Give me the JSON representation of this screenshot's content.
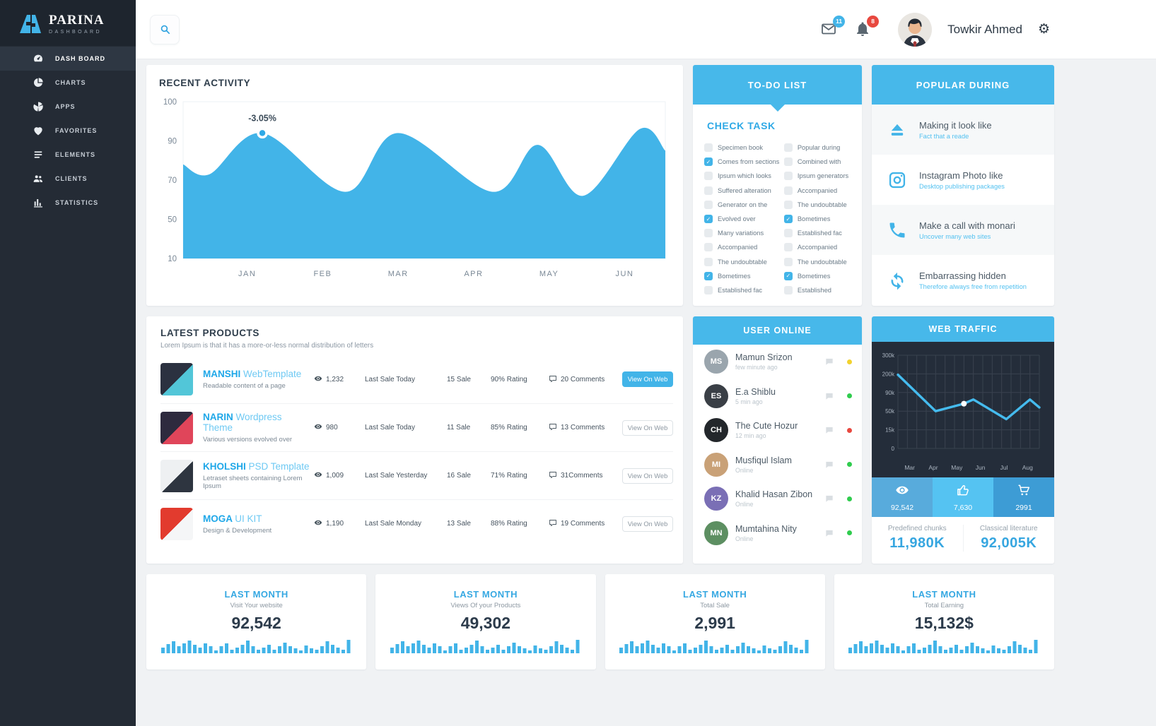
{
  "app": {
    "brand": "PARINA",
    "brand_sub": "DASHBOARD",
    "user_name": "Towkir Ahmed",
    "mail_badge": "11",
    "alert_badge": "8"
  },
  "sidebar": {
    "items": [
      {
        "label": "DASH BOARD",
        "icon": "dashboard-icon",
        "active": true
      },
      {
        "label": "CHARTS",
        "icon": "charts-icon",
        "active": false
      },
      {
        "label": "APPS",
        "icon": "apps-icon",
        "active": false
      },
      {
        "label": "FAVORITES",
        "icon": "favorites-icon",
        "active": false
      },
      {
        "label": "ELEMENTS",
        "icon": "elements-icon",
        "active": false
      },
      {
        "label": "CLIENTS",
        "icon": "clients-icon",
        "active": false
      },
      {
        "label": "STATISTICS",
        "icon": "statistics-icon",
        "active": false
      }
    ]
  },
  "recent_activity": {
    "title": "RECENT ACTIVITY"
  },
  "todo": {
    "header": "TO-DO LIST",
    "subheader": "CHECK TASK",
    "left": [
      {
        "label": "Specimen book",
        "checked": false
      },
      {
        "label": "Comes from sections",
        "checked": true
      },
      {
        "label": "Ipsum which looks",
        "checked": false
      },
      {
        "label": "Suffered alteration",
        "checked": false
      },
      {
        "label": "Generator on the",
        "checked": false
      },
      {
        "label": "Evolved over",
        "checked": true
      },
      {
        "label": "Many variations",
        "checked": false
      },
      {
        "label": "Accompanied",
        "checked": false
      },
      {
        "label": "The undoubtable",
        "checked": false
      },
      {
        "label": "Bometimes",
        "checked": true
      },
      {
        "label": "Established fac",
        "checked": false
      }
    ],
    "right": [
      {
        "label": "Popular during",
        "checked": false
      },
      {
        "label": "Combined with",
        "checked": false
      },
      {
        "label": "Ipsum generators",
        "checked": false
      },
      {
        "label": "Accompanied",
        "checked": false
      },
      {
        "label": "The undoubtable",
        "checked": false
      },
      {
        "label": "Bometimes",
        "checked": true
      },
      {
        "label": "Established fac",
        "checked": false
      },
      {
        "label": "Accompanied",
        "checked": false
      },
      {
        "label": "The undoubtable",
        "checked": false
      },
      {
        "label": "Bometimes",
        "checked": true
      },
      {
        "label": "Established",
        "checked": false
      }
    ]
  },
  "popular": {
    "header": "POPULAR DURING",
    "items": [
      {
        "title": "Making it look like",
        "subtitle": "Fact that a reade",
        "icon": "eject-icon"
      },
      {
        "title": "Instagram Photo like",
        "subtitle": "Desktop publishing packages",
        "icon": "instagram-icon"
      },
      {
        "title": "Make a call with monari",
        "subtitle": "Uncover many web sites",
        "icon": "phone-icon"
      },
      {
        "title": "Embarrassing hidden",
        "subtitle": "Therefore always free from repetition",
        "icon": "sync-icon"
      }
    ]
  },
  "products": {
    "title": "LATEST PRODUCTS",
    "subtitle": "Lorem Ipsum is that it has a more-or-less normal distribution of letters",
    "items": [
      {
        "name": "MANSHI",
        "name_suffix": "WebTemplate",
        "desc": "Readable content of a page",
        "views": "1,232",
        "last_sale": "Last Sale Today",
        "sale": "15 Sale",
        "rating": "90%  Rating",
        "comments": "20 Comments",
        "button": "View On Web",
        "primary_button": true,
        "thumb_colors": [
          "#2b3140",
          "#52c6d8"
        ]
      },
      {
        "name": "NARIN",
        "name_suffix": "Wordpress Theme",
        "desc": "Various versions evolved over",
        "views": "980",
        "last_sale": "Last Sale Today",
        "sale": "11 Sale",
        "rating": "85%  Rating",
        "comments": "13 Comments",
        "button": "View On Web",
        "primary_button": false,
        "thumb_colors": [
          "#2e2a3e",
          "#e0455a"
        ]
      },
      {
        "name": "KHOLSHI",
        "name_suffix": "PSD Template",
        "desc": "Letraset sheets containing Lorem Ipsum",
        "views": "1,009",
        "last_sale": "Last Sale Yesterday",
        "sale": "16 Sale",
        "rating": "71%  Rating",
        "comments": "31Comments",
        "button": "View On Web",
        "primary_button": false,
        "thumb_colors": [
          "#eef0f2",
          "#2e3540"
        ]
      },
      {
        "name": "MOGA",
        "name_suffix": "UI KIT",
        "desc": "Design & Development",
        "views": "1,190",
        "last_sale": "Last Sale Monday",
        "sale": "13 Sale",
        "rating": "88%  Rating",
        "comments": "19 Comments",
        "button": "View On Web",
        "primary_button": false,
        "thumb_colors": [
          "#e23b2e",
          "#f5f6f7"
        ]
      }
    ]
  },
  "users_online": {
    "header": "USER ONLINE",
    "items": [
      {
        "name": "Mamun Srizon",
        "time": "few minute ago",
        "status_color": "#f2d22e",
        "avatar_bg": "#9aa5ad",
        "initials": "MS"
      },
      {
        "name": "E.a Shiblu",
        "time": "5 min ago",
        "status_color": "#30cc4e",
        "avatar_bg": "#3a3f46",
        "initials": "ES"
      },
      {
        "name": "The Cute Hozur",
        "time": "12 min ago",
        "status_color": "#e8483f",
        "avatar_bg": "#23272b",
        "initials": "CH"
      },
      {
        "name": "Musfiqul Islam",
        "time": "Online",
        "status_color": "#30cc4e",
        "avatar_bg": "#c9a177",
        "initials": "MI"
      },
      {
        "name": "Khalid Hasan Zibon",
        "time": "Online",
        "status_color": "#30cc4e",
        "avatar_bg": "#7a6fb5",
        "initials": "KZ"
      },
      {
        "name": "Mumtahina Nity",
        "time": "Online",
        "status_color": "#30cc4e",
        "avatar_bg": "#5d8f62",
        "initials": "MN"
      }
    ]
  },
  "web_traffic": {
    "header": "WEB TRAFFIC",
    "stats": [
      {
        "icon": "eye-icon",
        "value": "92,542",
        "bg": "#58abdc"
      },
      {
        "icon": "thumbs-up-icon",
        "value": "7,630",
        "bg": "#55c3f2"
      },
      {
        "icon": "cart-icon",
        "value": "2991",
        "bg": "#3d9cd5"
      }
    ],
    "footer": [
      {
        "label": "Predefined chunks",
        "value": "11,980K"
      },
      {
        "label": "Classical literature",
        "value": "92,005K"
      }
    ]
  },
  "summary_cards": [
    {
      "title": "LAST MONTH",
      "subtitle": "Visit Your website",
      "value": "92,542"
    },
    {
      "title": "LAST MONTH",
      "subtitle": "Views Of your Products",
      "value": "49,302"
    },
    {
      "title": "LAST MONTH",
      "subtitle": "Total Sale",
      "value": "2,991"
    },
    {
      "title": "LAST MONTH",
      "subtitle": "Total Earning",
      "value": "15,132$"
    }
  ],
  "chart_data": [
    {
      "type": "area",
      "title": "RECENT ACTIVITY",
      "x_labels": [
        "JAN",
        "FEB",
        "MAR",
        "APR",
        "MAY",
        "JUN"
      ],
      "y_ticks": [
        100,
        90,
        70,
        50,
        10
      ],
      "x_range": [
        0.15,
        6.54
      ],
      "points": [
        [
          0.15,
          78
        ],
        [
          0.5,
          73
        ],
        [
          1.2,
          92
        ],
        [
          2.3,
          64
        ],
        [
          3.0,
          92
        ],
        [
          4.25,
          64
        ],
        [
          4.85,
          88
        ],
        [
          5.45,
          62
        ],
        [
          6.2,
          93
        ],
        [
          6.54,
          85
        ]
      ],
      "annotation": {
        "label": "-3.05%",
        "x": 1.2,
        "y": 92
      },
      "color": "#42b4e8",
      "grid": false,
      "legend": "none"
    },
    {
      "type": "line",
      "title": "WEB TRAFFIC",
      "x_labels": [
        "Mar",
        "Apr",
        "May",
        "Jun",
        "Jul",
        "Aug"
      ],
      "y_tick_labels": [
        "300k",
        "200k",
        "90k",
        "50k",
        "15k",
        "0"
      ],
      "y_ticks": [
        300,
        200,
        90,
        50,
        15,
        0
      ],
      "x_range": [
        0,
        6
      ],
      "points": [
        [
          0,
          195
        ],
        [
          1.6,
          50
        ],
        [
          2.8,
          66
        ],
        [
          3.2,
          75
        ],
        [
          4.6,
          35
        ],
        [
          5.6,
          75
        ],
        [
          6,
          58
        ]
      ],
      "highlight_index": 2,
      "color": "#45bbee",
      "bg": "#242d3a",
      "grid_color": "#39424f",
      "grid": true,
      "legend": "none"
    },
    {
      "type": "bar",
      "title": "last-month-mini-bars",
      "values": [
        8,
        13,
        17,
        10,
        14,
        18,
        12,
        8,
        14,
        10,
        4,
        10,
        14,
        5,
        8,
        12,
        18,
        10,
        5,
        8,
        12,
        5,
        10,
        15,
        10,
        7,
        4,
        11,
        7,
        5,
        10,
        17,
        12,
        8,
        5,
        19
      ],
      "color": "#42b4e8"
    }
  ],
  "colors": {
    "accent": "#42b4e8",
    "banner": "#47b8ea",
    "sidebar_bg": "#242b35",
    "dark_panel": "#242d3a",
    "badge_mail": "#42b4e8",
    "badge_alert": "#e8483f",
    "status_yellow": "#f2d22e",
    "status_green": "#30cc4e",
    "status_red": "#e8483f"
  }
}
